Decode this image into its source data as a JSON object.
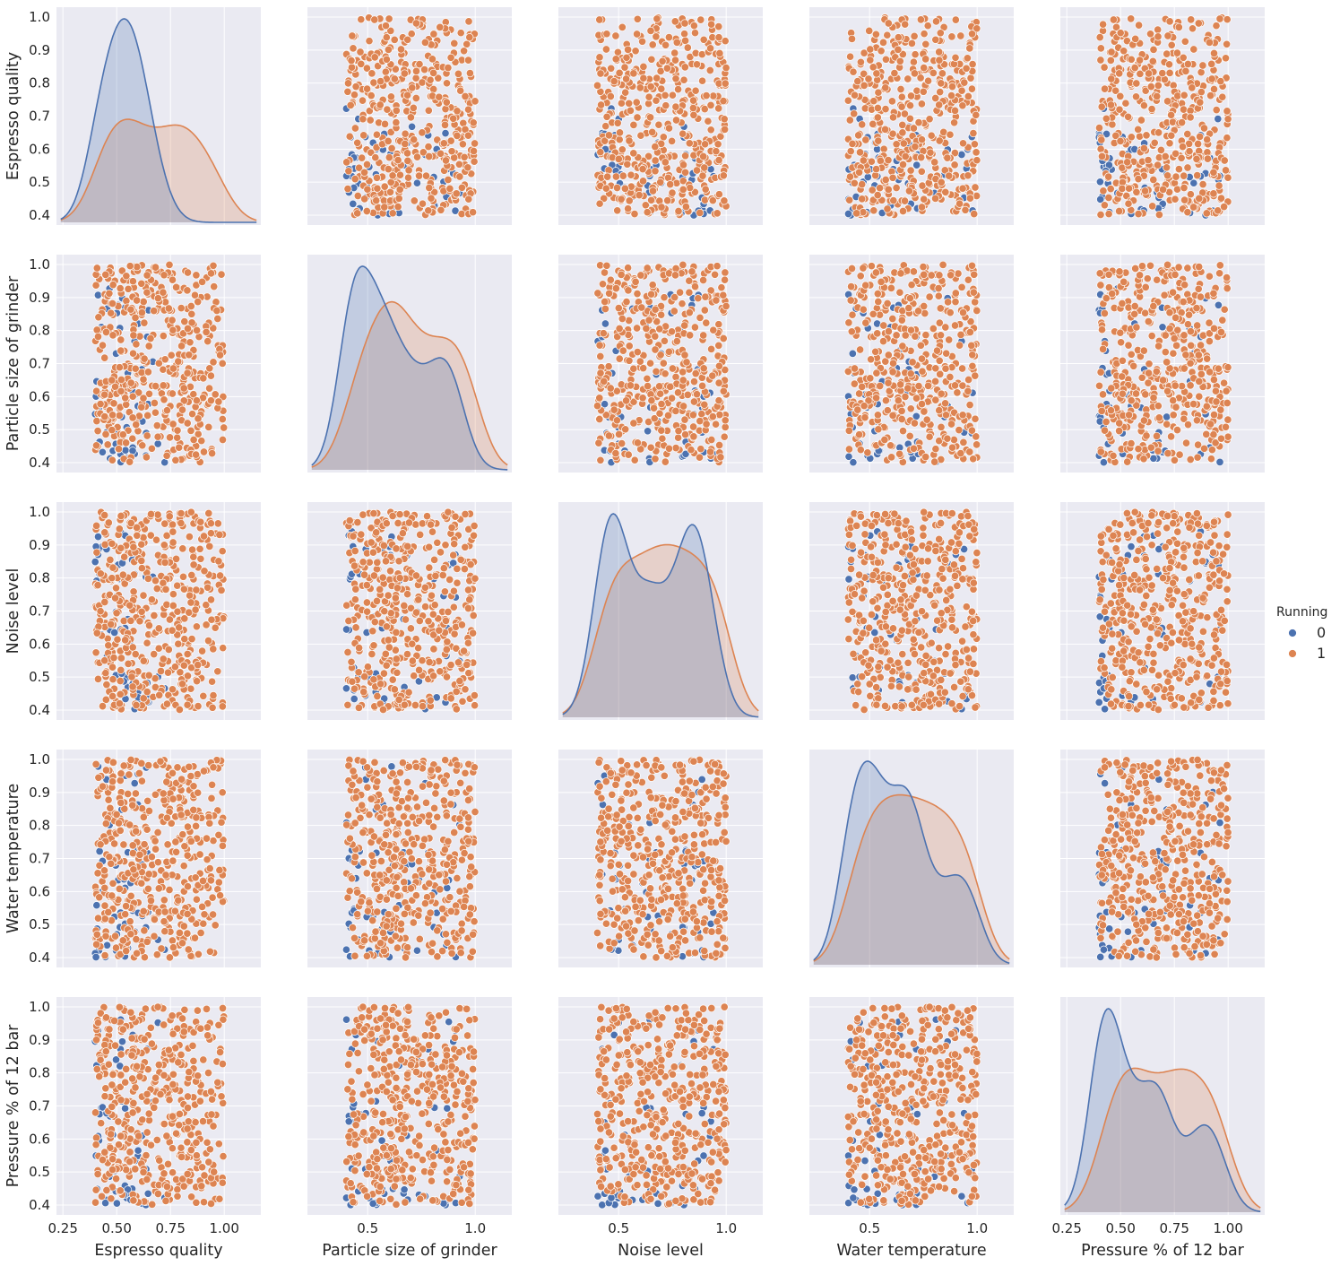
{
  "chart_data": {
    "type": "scatter",
    "subtype": "pairplot",
    "variables": [
      "Espresso quality",
      "Particle size of grinder",
      "Noise level",
      "Water temperature",
      "Pressure % of 12 bar"
    ],
    "hue": {
      "title": "Running",
      "levels": [
        {
          "label": "0",
          "color": "#4c72b0"
        },
        {
          "label": "1",
          "color": "#dd8452"
        }
      ]
    },
    "y_ticks": [
      "0.4",
      "0.5",
      "0.6",
      "0.7",
      "0.8",
      "0.9",
      "1.0"
    ],
    "x_ticks": [
      [
        "0.25",
        "0.50",
        "0.75",
        "1.00"
      ],
      [
        "0.5",
        "1.0"
      ],
      [
        "0.5",
        "1.0"
      ],
      [
        "0.5",
        "1.0"
      ],
      [
        "0.25",
        "0.50",
        "0.75",
        "1.00"
      ]
    ],
    "ylim": [
      0.37,
      1.03
    ],
    "xlim": [
      [
        0.22,
        1.17
      ],
      [
        0.22,
        1.17
      ],
      [
        0.22,
        1.17
      ],
      [
        0.22,
        1.17
      ],
      [
        0.22,
        1.17
      ]
    ],
    "value_range": [
      0.4,
      1.0
    ],
    "group_sizes": {
      "0": 55,
      "1": 445
    },
    "group0_range": {
      "Espresso quality": [
        0.4,
        0.78
      ],
      "Particle size of grinder": [
        0.4,
        0.95
      ],
      "Noise level": [
        0.4,
        0.95
      ],
      "Water temperature": [
        0.4,
        0.98
      ],
      "Pressure % of 12 bar": [
        0.4,
        0.98
      ]
    },
    "diagonal": "kde",
    "kde_peaks": {
      "Espresso quality": {
        "0": 0.5,
        "1": 0.75
      },
      "Particle size of grinder": {
        "0": 0.5,
        "1": 0.9
      },
      "Noise level": {
        "0": 0.5,
        "1": 0.8
      },
      "Water temperature": {
        "0": 0.47,
        "1": 0.65
      },
      "Pressure % of 12 bar": {
        "0": 0.55,
        "1": 0.65
      }
    },
    "grid": true,
    "legend": "right"
  }
}
